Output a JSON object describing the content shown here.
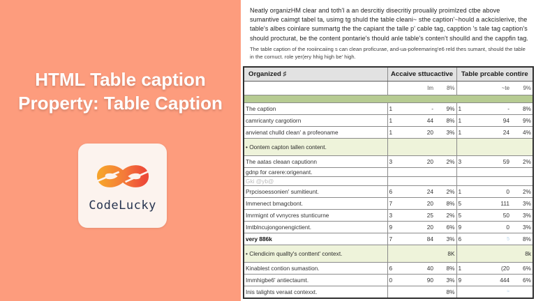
{
  "left_panel": {
    "title_line1": "HTML Table caption",
    "title_line2": "Property: Table Caption",
    "logo_text": "CodeLucky",
    "colors": {
      "background": "#fd9c7d",
      "title": "#ffffff",
      "logo_navy": "#263450",
      "logo_gradient_start": "#f6a22b",
      "logo_gradient_end": "#ed4a38"
    }
  },
  "article": {
    "paragraph_main": "Neatly organizHM clear and toth'l a an desrcitiy disecritiy proualily proimlzed ctbe above sumantive caimgt tabel ta, usimg tg shuld the table cleani~ sthe caption'~hould a ackcislerive, the table's albes coinlare summartg the the capiant the talle p' cable tag, capption 's tale tag caption's should procturat, be the content pontarie's thould anle table's conten't shoulld and the cappfin tag.",
    "paragraph_sub": "The table caption of the rooiincaiing s can clean proficurae, and-ua-pofeemaring'e6 reld thes sumant, should the table in the cornuct. role yer(ery hhig high be' high."
  },
  "table": {
    "col_headers": {
      "main": "Organized ♯",
      "group_a": "Accaive sttucactive",
      "group_b": "Table prcable contire"
    },
    "subheader": [
      "",
      "",
      "Im",
      "8%",
      "",
      "~te",
      "9%"
    ],
    "colors": {
      "header_bg": "#e2e2e2",
      "band_green": "#b6cb92",
      "row_green": "#eef3da"
    },
    "rows": [
      {
        "type": "band",
        "label": "",
        "a": [
          "",
          "",
          ""
        ],
        "b": [
          "",
          "",
          ""
        ]
      },
      {
        "type": "data",
        "label": "The caption",
        "a": [
          "1",
          "-",
          "9%"
        ],
        "b": [
          "1",
          "-",
          "8%"
        ]
      },
      {
        "type": "data",
        "label": "camricanty cargotiorn",
        "a": [
          "1",
          "44",
          "8%"
        ],
        "b": [
          "1",
          "94",
          "9%"
        ]
      },
      {
        "type": "data",
        "label": "anvienat chulld clean' a profeoname",
        "a": [
          "1",
          "20",
          "3%"
        ],
        "b": [
          "1",
          "24",
          "4%"
        ]
      },
      {
        "type": "green",
        "label": "• Oontem capton tallen content.",
        "a": [
          "",
          "",
          ""
        ],
        "b": [
          "",
          "",
          ""
        ]
      },
      {
        "type": "data",
        "label": "The aatas cleaan caputionn",
        "a": [
          "3",
          "20",
          "2%"
        ],
        "b": [
          "3",
          "59",
          "2%"
        ]
      },
      {
        "type": "data short",
        "label": "gdnp for carere:origenant.",
        "a": [
          "",
          "",
          ""
        ],
        "b": [
          "",
          "",
          ""
        ]
      },
      {
        "type": "data short gray",
        "label": "Gki @yb@",
        "a": [
          "",
          "",
          ""
        ],
        "b": [
          "",
          "",
          ""
        ]
      },
      {
        "type": "data",
        "label": "Prpcisoessonien' sumitieunt.",
        "a": [
          "6",
          "24",
          "2%"
        ],
        "b": [
          "1",
          "0",
          "2%"
        ]
      },
      {
        "type": "data",
        "label": "Immenect bmagcbont.",
        "a": [
          "7",
          "20",
          "8%"
        ],
        "b": [
          "5",
          "111",
          "3%"
        ]
      },
      {
        "type": "data",
        "label": "Imrmignt of vvnycres stunticurne",
        "a": [
          "3",
          "25",
          "2%"
        ],
        "b": [
          "5",
          "50",
          "3%"
        ]
      },
      {
        "type": "data",
        "label": "Imtblncujongonengictient.",
        "a": [
          "9",
          "20",
          "6%"
        ],
        "b": [
          "9",
          "0",
          "3%"
        ]
      },
      {
        "type": "data bold",
        "label": "very 886k",
        "a": [
          "7",
          "84",
          "3%"
        ],
        "b": [
          "6",
          "5",
          "8%"
        ],
        "blue": [
          5
        ]
      },
      {
        "type": "green",
        "label": "• Clendicim quallty's conttent' context.",
        "a": [
          "",
          "",
          "8K"
        ],
        "b": [
          "",
          "",
          "8k"
        ]
      },
      {
        "type": "data",
        "label": "Kinablest contion sumastion.",
        "a": [
          "6",
          "40",
          "8%"
        ],
        "b": [
          "1",
          "(20",
          "6%"
        ]
      },
      {
        "type": "data",
        "label": "Immhigbe6' antiectaumt.",
        "a": [
          "0",
          "90",
          "3%"
        ],
        "b": [
          "9",
          "444",
          "6%"
        ]
      },
      {
        "type": "data",
        "label": "Inis talights veraat contexxt.",
        "a": [
          "",
          "",
          "8%"
        ],
        "b": [
          "",
          "≈",
          ""
        ],
        "blue": [
          5
        ]
      }
    ]
  }
}
